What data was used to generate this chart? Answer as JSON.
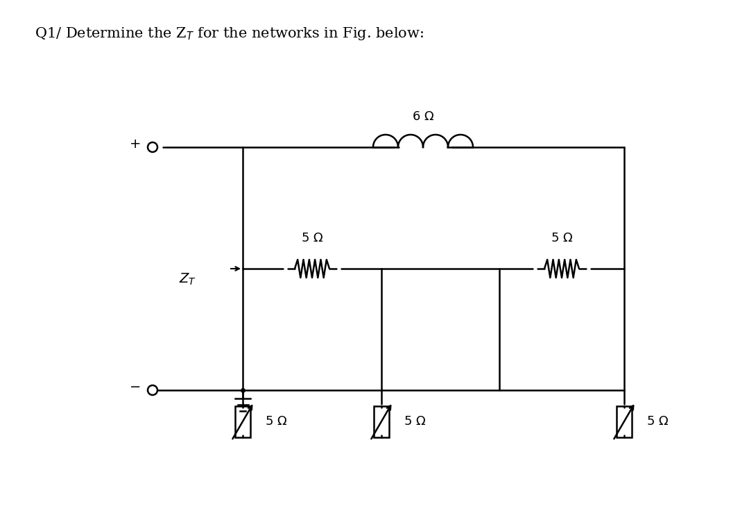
{
  "title": "Q1/ Determine the Zₜ for the networks in Fig. below:",
  "title_plain": "Q1/ Determine the Z$_T$ for the networks in Fig. below:",
  "bg_color": "#ffffff",
  "line_color": "#000000",
  "fig_width": 10.8,
  "fig_height": 7.62,
  "dpi": 100
}
